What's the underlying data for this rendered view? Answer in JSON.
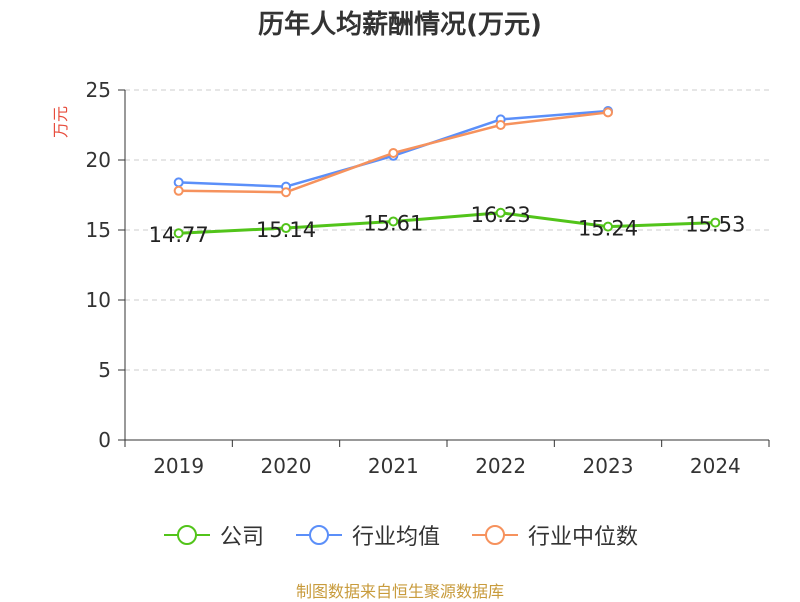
{
  "title": "历年人均薪酬情况(万元)",
  "source": "制图数据来自恒生聚源数据库",
  "colors": {
    "company": "#52c41a",
    "industry_mean": "#5b8ff9",
    "industry_median": "#f6925d",
    "grid": "#cccccc",
    "axis": "#333333",
    "ylabel": "#e74c3c"
  },
  "chart_data": {
    "type": "line",
    "title": "历年人均薪酬情况(万元)",
    "xlabel": "",
    "ylabel": "万元",
    "ylim": [
      0,
      25
    ],
    "yticks": [
      0,
      5,
      10,
      15,
      20,
      25
    ],
    "categories": [
      "2019",
      "2020",
      "2021",
      "2022",
      "2023",
      "2024"
    ],
    "grid": true,
    "legend_position": "bottom",
    "series": [
      {
        "name": "公司",
        "color": "#52c41a",
        "values": [
          14.77,
          15.14,
          15.61,
          16.23,
          15.24,
          15.53
        ],
        "labels": [
          "14.77",
          "15.14",
          "15.61",
          "16.23",
          "15.24",
          "15.53"
        ]
      },
      {
        "name": "行业均值",
        "color": "#5b8ff9",
        "values": [
          18.4,
          18.1,
          20.3,
          22.9,
          23.5,
          null
        ]
      },
      {
        "name": "行业中位数",
        "color": "#f6925d",
        "values": [
          17.8,
          17.7,
          20.5,
          22.5,
          23.4,
          null
        ]
      }
    ]
  }
}
